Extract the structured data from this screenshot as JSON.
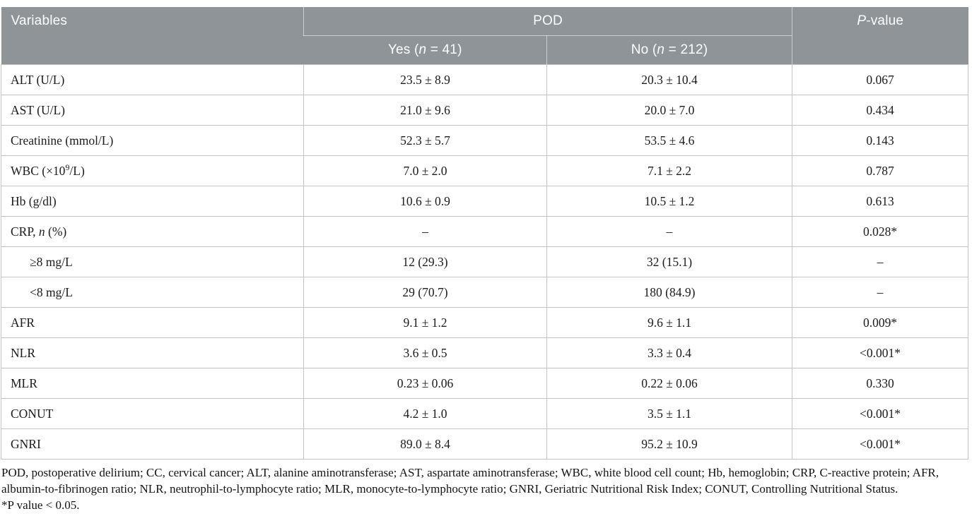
{
  "colors": {
    "header_bg": "#8e9497",
    "header_text": "#ffffff",
    "border": "#c2c4c4",
    "body_text": "#1b1b1b"
  },
  "header": {
    "variables": "Variables",
    "pod": "POD",
    "yes": {
      "pre": "Yes (",
      "n": "n",
      "post": " = 41)"
    },
    "no": {
      "pre": "No (",
      "n": "n",
      "post": " = 212)"
    },
    "pvalue": {
      "italic": "P",
      "rest": "-value"
    }
  },
  "rows": [
    {
      "label": [
        {
          "t": "ALT (U/L)"
        }
      ],
      "indent": false,
      "yes": "23.5 ± 8.9",
      "no": "20.3 ± 10.4",
      "p": "0.067"
    },
    {
      "label": [
        {
          "t": "AST (U/L)"
        }
      ],
      "indent": false,
      "yes": "21.0 ± 9.6",
      "no": "20.0 ± 7.0",
      "p": "0.434"
    },
    {
      "label": [
        {
          "t": "Creatinine (mmol/L)"
        }
      ],
      "indent": false,
      "yes": "52.3 ± 5.7",
      "no": "53.5 ± 4.6",
      "p": "0.143"
    },
    {
      "label": [
        {
          "t": "WBC (×10"
        },
        {
          "sup": "9"
        },
        {
          "t": "/L)"
        }
      ],
      "indent": false,
      "yes": "7.0 ± 2.0",
      "no": "7.1 ± 2.2",
      "p": "0.787"
    },
    {
      "label": [
        {
          "t": "Hb (g/dl)"
        }
      ],
      "indent": false,
      "yes": "10.6 ± 0.9",
      "no": "10.5 ± 1.2",
      "p": "0.613"
    },
    {
      "label": [
        {
          "t": "CRP, "
        },
        {
          "i": "n"
        },
        {
          "t": " (%)"
        }
      ],
      "indent": false,
      "yes": "–",
      "no": "–",
      "p": "0.028*"
    },
    {
      "label": [
        {
          "t": "≥8 mg/L"
        }
      ],
      "indent": true,
      "yes": "12 (29.3)",
      "no": "32 (15.1)",
      "p": "–"
    },
    {
      "label": [
        {
          "t": "<8 mg/L"
        }
      ],
      "indent": true,
      "yes": "29 (70.7)",
      "no": "180 (84.9)",
      "p": "–"
    },
    {
      "label": [
        {
          "t": "AFR"
        }
      ],
      "indent": false,
      "yes": "9.1 ± 1.2",
      "no": "9.6 ± 1.1",
      "p": "0.009*"
    },
    {
      "label": [
        {
          "t": "NLR"
        }
      ],
      "indent": false,
      "yes": "3.6 ± 0.5",
      "no": "3.3 ± 0.4",
      "p": "<0.001*"
    },
    {
      "label": [
        {
          "t": "MLR"
        }
      ],
      "indent": false,
      "yes": "0.23 ± 0.06",
      "no": "0.22 ± 0.06",
      "p": "0.330"
    },
    {
      "label": [
        {
          "t": "CONUT"
        }
      ],
      "indent": false,
      "yes": "4.2 ± 1.0",
      "no": "3.5 ± 1.1",
      "p": "<0.001*"
    },
    {
      "label": [
        {
          "t": "GNRI"
        }
      ],
      "indent": false,
      "yes": "89.0 ± 8.4",
      "no": "95.2 ± 10.9",
      "p": "<0.001*"
    }
  ],
  "footnotes": {
    "abbreviations": "POD, postoperative delirium; CC, cervical cancer; ALT, alanine aminotransferase; AST, aspartate aminotransferase; WBC, white blood cell count; Hb, hemoglobin; CRP, C-reactive protein; AFR, albumin-to-fibrinogen ratio; NLR, neutrophil-to-lymphocyte ratio; MLR, monocyte-to-lymphocyte ratio; GNRI, Geriatric Nutritional Risk Index; CONUT, Controlling Nutritional Status.",
    "significance": "*P value < 0.05."
  }
}
